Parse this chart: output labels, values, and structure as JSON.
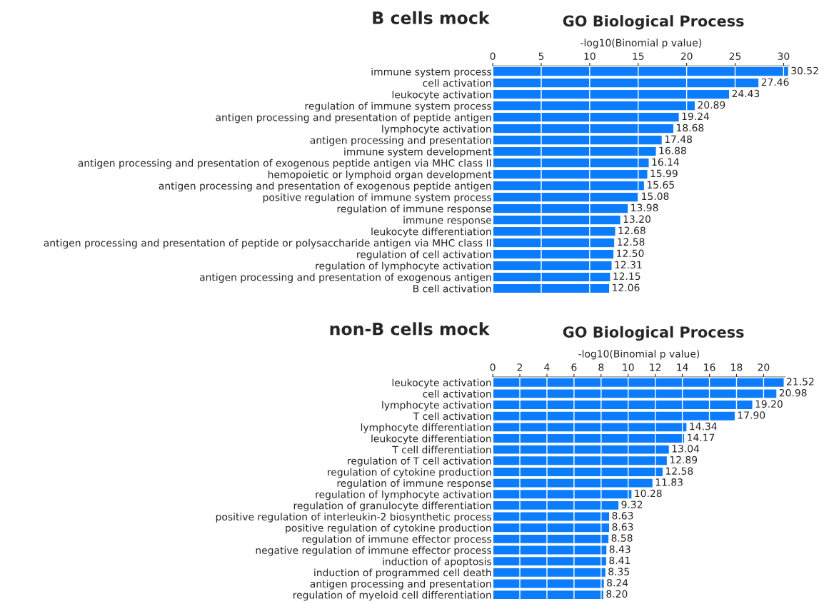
{
  "chart_data": [
    {
      "type": "bar",
      "orientation": "horizontal",
      "title": "B cells mock",
      "subtitle": "GO Biological Process",
      "xlabel": "-log10(Binomial p value)",
      "categories": [
        "immune system process",
        "cell activation",
        "leukocyte activation",
        "regulation of immune system process",
        "antigen processing and presentation of peptide antigen",
        "lymphocyte activation",
        "antigen processing and presentation",
        "immune system development",
        "antigen processing and presentation of exogenous peptide antigen via MHC class II",
        "hemopoietic or lymphoid organ development",
        "antigen processing and presentation of exogenous peptide antigen",
        "positive regulation of immune system process",
        "regulation of immune response",
        "immune response",
        "leukocyte differentiation",
        "antigen processing and presentation of peptide or polysaccharide antigen via MHC class II",
        "regulation of cell activation",
        "regulation of lymphocyte activation",
        "antigen processing and presentation of exogenous antigen",
        "B cell activation"
      ],
      "values": [
        30.52,
        27.46,
        24.43,
        20.89,
        19.24,
        18.68,
        17.48,
        16.88,
        16.14,
        15.99,
        15.65,
        15.08,
        13.98,
        13.2,
        12.68,
        12.58,
        12.5,
        12.31,
        12.15,
        12.06
      ],
      "value_labels": [
        "30.52",
        "27.46",
        "24.43",
        "20.89",
        "19.24",
        "18.68",
        "17.48",
        "16.88",
        "16.14",
        "15.99",
        "15.65",
        "15.08",
        "13.98",
        "13.20",
        "12.68",
        "12.58",
        "12.50",
        "12.31",
        "12.15",
        "12.06"
      ],
      "color": "#0a7cfc",
      "xlim": [
        0,
        30.6
      ],
      "xticks": [
        0,
        5,
        10,
        15,
        20,
        25,
        30
      ],
      "grid": "x"
    },
    {
      "type": "bar",
      "orientation": "horizontal",
      "title": "non-B cells mock",
      "subtitle": "GO Biological Process",
      "xlabel": "-log10(Binomial p value)",
      "categories": [
        "leukocyte activation",
        "cell activation",
        "lymphocyte activation",
        "T cell activation",
        "lymphocyte differentiation",
        "leukocyte differentiation",
        "T cell differentiation",
        "regulation of T cell activation",
        "regulation of cytokine production",
        "regulation of immune response",
        "regulation of lymphocyte activation",
        "regulation of granulocyte differentiation",
        "positive regulation of interleukin-2 biosynthetic process",
        "positive regulation of cytokine production",
        "regulation of immune effector process",
        "negative regulation of immune effector process",
        "induction of apoptosis",
        "induction of programmed cell death",
        "antigen processing and presentation",
        "regulation of myeloid cell differentiation"
      ],
      "values": [
        21.52,
        20.98,
        19.2,
        17.9,
        14.34,
        14.17,
        13.04,
        12.89,
        12.58,
        11.83,
        10.28,
        9.32,
        8.63,
        8.63,
        8.58,
        8.43,
        8.41,
        8.35,
        8.24,
        8.2
      ],
      "value_labels": [
        "21.52",
        "20.98",
        "19.20",
        "17.90",
        "14.34",
        "14.17",
        "13.04",
        "12.89",
        "12.58",
        "11.83",
        "10.28",
        "9.32",
        "8.63",
        "8.63",
        "8.58",
        "8.43",
        "8.41",
        "8.35",
        "8.24",
        "8.20"
      ],
      "color": "#0a7cfc",
      "xlim": [
        0,
        21.6
      ],
      "xticks": [
        0,
        2,
        4,
        6,
        8,
        10,
        12,
        14,
        16,
        18,
        20
      ],
      "grid": "x"
    }
  ]
}
